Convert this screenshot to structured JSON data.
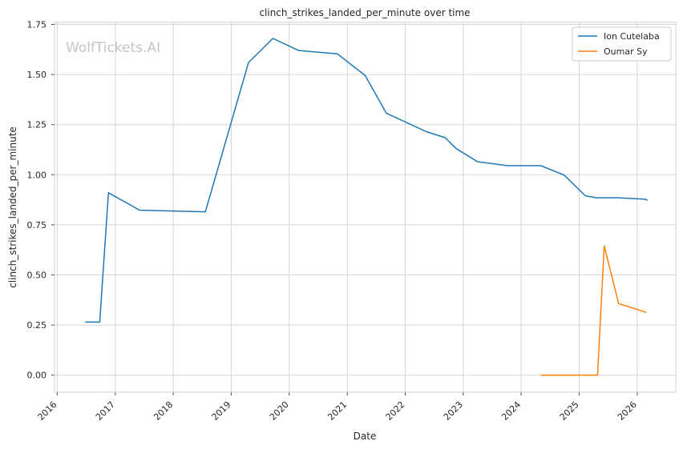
{
  "chart_data": {
    "type": "line",
    "title": "clinch_strikes_landed_per_minute over time",
    "xlabel": "Date",
    "ylabel": "clinch_strikes_landed_per_minute",
    "watermark": "WolfTickets.AI",
    "x_ticks": [
      "2016",
      "2017",
      "2018",
      "2019",
      "2020",
      "2021",
      "2022",
      "2023",
      "2024",
      "2025",
      "2026"
    ],
    "y_ticks": [
      "0.00",
      "0.25",
      "0.50",
      "0.75",
      "1.00",
      "1.25",
      "1.50",
      "1.75"
    ],
    "xlim": [
      "2015-12-15",
      "2026-09-01"
    ],
    "ylim": [
      -0.085,
      1.76
    ],
    "grid": true,
    "legend_position": "top-right",
    "series": [
      {
        "name": "Ion Cutelaba",
        "color": "#1f77b4",
        "points": [
          [
            "2016-06-25",
            0.265
          ],
          [
            "2016-09-25",
            0.265
          ],
          [
            "2016-11-19",
            0.91
          ],
          [
            "2017-06-03",
            0.823
          ],
          [
            "2018-07-22",
            0.815
          ],
          [
            "2019-04-20",
            1.56
          ],
          [
            "2019-09-21",
            1.68
          ],
          [
            "2020-02-29",
            1.62
          ],
          [
            "2020-10-31",
            1.603
          ],
          [
            "2021-04-24",
            1.495
          ],
          [
            "2021-09-04",
            1.307
          ],
          [
            "2022-05-14",
            1.215
          ],
          [
            "2022-09-10",
            1.185
          ],
          [
            "2022-11-19",
            1.13
          ],
          [
            "2023-04-01",
            1.065
          ],
          [
            "2023-10-07",
            1.045
          ],
          [
            "2024-05-04",
            1.045
          ],
          [
            "2024-09-28",
            0.998
          ],
          [
            "2025-02-08",
            0.895
          ],
          [
            "2025-04-19",
            0.885
          ],
          [
            "2025-09-01",
            0.885
          ],
          [
            "2026-02-21",
            0.878
          ],
          [
            "2026-03-07",
            0.872
          ]
        ]
      },
      {
        "name": "Oumar Sy",
        "color": "#ff7f0e",
        "points": [
          [
            "2024-05-04",
            0.0
          ],
          [
            "2025-04-26",
            0.0
          ],
          [
            "2025-06-07",
            0.645
          ],
          [
            "2025-09-06",
            0.357
          ],
          [
            "2026-02-28",
            0.313
          ]
        ]
      }
    ]
  }
}
